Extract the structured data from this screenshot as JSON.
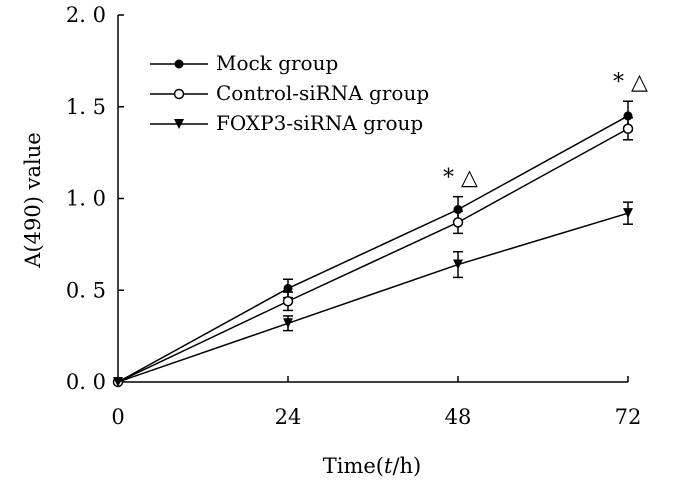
{
  "chart_data": {
    "type": "line",
    "title": "",
    "xlabel_prefix": "Time(",
    "xlabel_var": "t",
    "xlabel_suffix": "/h)",
    "ylabel": "A(490) value",
    "x": [
      0,
      24,
      48,
      72
    ],
    "xticks": [
      "0",
      "24",
      "48",
      "72"
    ],
    "yticks": [
      "0. 0",
      "0. 5",
      "1. 0",
      "1. 5",
      "2. 0"
    ],
    "ytick_values": [
      0,
      0.5,
      1.0,
      1.5,
      2.0
    ],
    "xlim": [
      0,
      72
    ],
    "ylim": [
      0,
      2.0
    ],
    "grid": false,
    "legend_position": "top-left",
    "series": [
      {
        "name": "Mock group",
        "marker": "filled-circle",
        "values": [
          0,
          0.51,
          0.94,
          1.45
        ],
        "errors": [
          0,
          0.05,
          0.07,
          0.08
        ]
      },
      {
        "name": "Control-siRNA group",
        "marker": "open-circle",
        "values": [
          0,
          0.44,
          0.87,
          1.38
        ],
        "errors": [
          0,
          0.05,
          0.06,
          0.06
        ]
      },
      {
        "name": "FOXP3-siRNA group",
        "marker": "filled-triangle-down",
        "values": [
          0,
          0.32,
          0.64,
          0.92
        ],
        "errors": [
          0,
          0.04,
          0.07,
          0.06
        ]
      }
    ],
    "annotations": [
      {
        "x": 48,
        "text": "* △"
      },
      {
        "x": 72,
        "text": "* △"
      }
    ]
  }
}
